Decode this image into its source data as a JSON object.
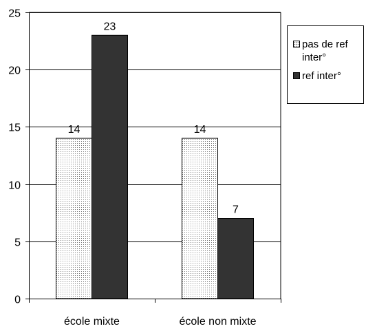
{
  "chart_data": {
    "type": "bar",
    "categories": [
      "école mixte",
      "école non mixte"
    ],
    "series": [
      {
        "name": "pas de ref inter°",
        "values": [
          14,
          14
        ],
        "fill": "dotted",
        "color": "#ffffff"
      },
      {
        "name": "ref inter°",
        "values": [
          23,
          7
        ],
        "fill": "solid",
        "color": "#333333"
      }
    ],
    "ylim": [
      0,
      25
    ],
    "yticks": [
      0,
      5,
      10,
      15,
      20,
      25
    ],
    "grid": true,
    "legend": "right",
    "title": "",
    "xlabel": "",
    "ylabel": ""
  }
}
